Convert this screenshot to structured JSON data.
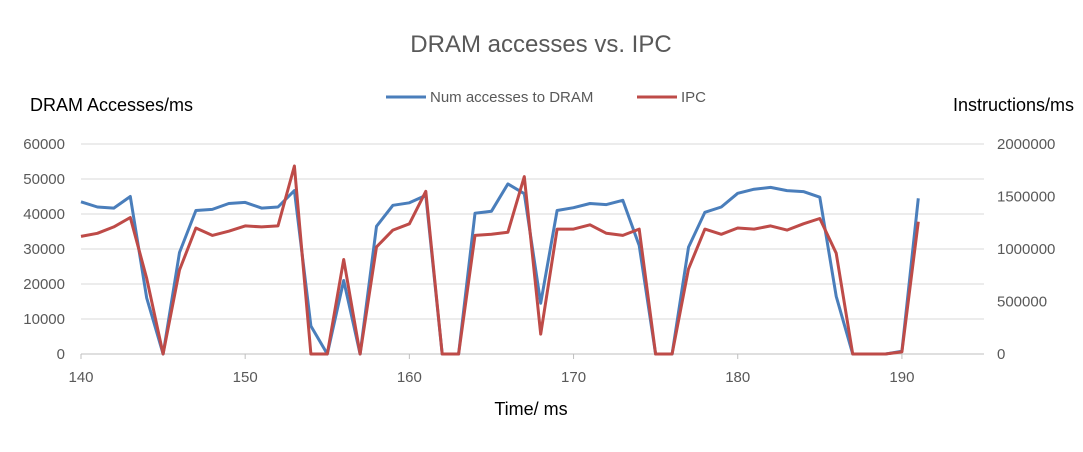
{
  "chart_data": {
    "type": "line",
    "title": "DRAM accesses vs. IPC",
    "xlabel": "Time/ ms",
    "ylabel_left": "DRAM Accesses/ms",
    "ylabel_right": "Instructions/ms",
    "xlim": [
      140,
      195
    ],
    "xticks": [
      140,
      150,
      160,
      170,
      180,
      190
    ],
    "ylim_left": [
      0,
      60000
    ],
    "yticks_left": [
      0,
      10000,
      20000,
      30000,
      40000,
      50000,
      60000
    ],
    "ylim_right": [
      0,
      2000000
    ],
    "yticks_right": [
      0,
      500000,
      1000000,
      1500000,
      2000000
    ],
    "grid": true,
    "legend_position": "top",
    "x": [
      140,
      141,
      142,
      143,
      144,
      145,
      146,
      147,
      148,
      149,
      150,
      151,
      152,
      153,
      154,
      155,
      156,
      157,
      158,
      159,
      160,
      161,
      162,
      163,
      164,
      165,
      166,
      167,
      168,
      169,
      170,
      171,
      172,
      173,
      174,
      175,
      176,
      177,
      178,
      179,
      180,
      181,
      182,
      183,
      184,
      185,
      186,
      187,
      188,
      189,
      190,
      191
    ],
    "series": [
      {
        "name": "Num accesses to DRAM",
        "axis": "left",
        "color": "#4a7ebb",
        "values": [
          43500,
          42000,
          41700,
          45000,
          16000,
          0,
          29000,
          41000,
          41300,
          43000,
          43300,
          41700,
          42000,
          46700,
          8000,
          0,
          21000,
          0,
          36500,
          42500,
          43200,
          45300,
          0,
          0,
          40200,
          40800,
          48600,
          45800,
          14500,
          41000,
          41800,
          43000,
          42700,
          43900,
          31000,
          0,
          0,
          30500,
          40500,
          42000,
          45900,
          47100,
          47600,
          46700,
          46400,
          44800,
          16500,
          0,
          0,
          0,
          800,
          44500
        ]
      },
      {
        "name": "IPC",
        "axis": "right",
        "color": "#be4b48",
        "values": [
          1120000,
          1150000,
          1210000,
          1300000,
          720000,
          0,
          800000,
          1200000,
          1130000,
          1170000,
          1220000,
          1210000,
          1220000,
          1790000,
          0,
          0,
          900000,
          0,
          1020000,
          1180000,
          1240000,
          1550000,
          0,
          0,
          1130000,
          1140000,
          1160000,
          1690000,
          190000,
          1190000,
          1190000,
          1230000,
          1150000,
          1130000,
          1190000,
          0,
          0,
          810000,
          1190000,
          1140000,
          1200000,
          1190000,
          1220000,
          1180000,
          1240000,
          1290000,
          960000,
          0,
          0,
          0,
          20000,
          1260000
        ]
      }
    ]
  }
}
